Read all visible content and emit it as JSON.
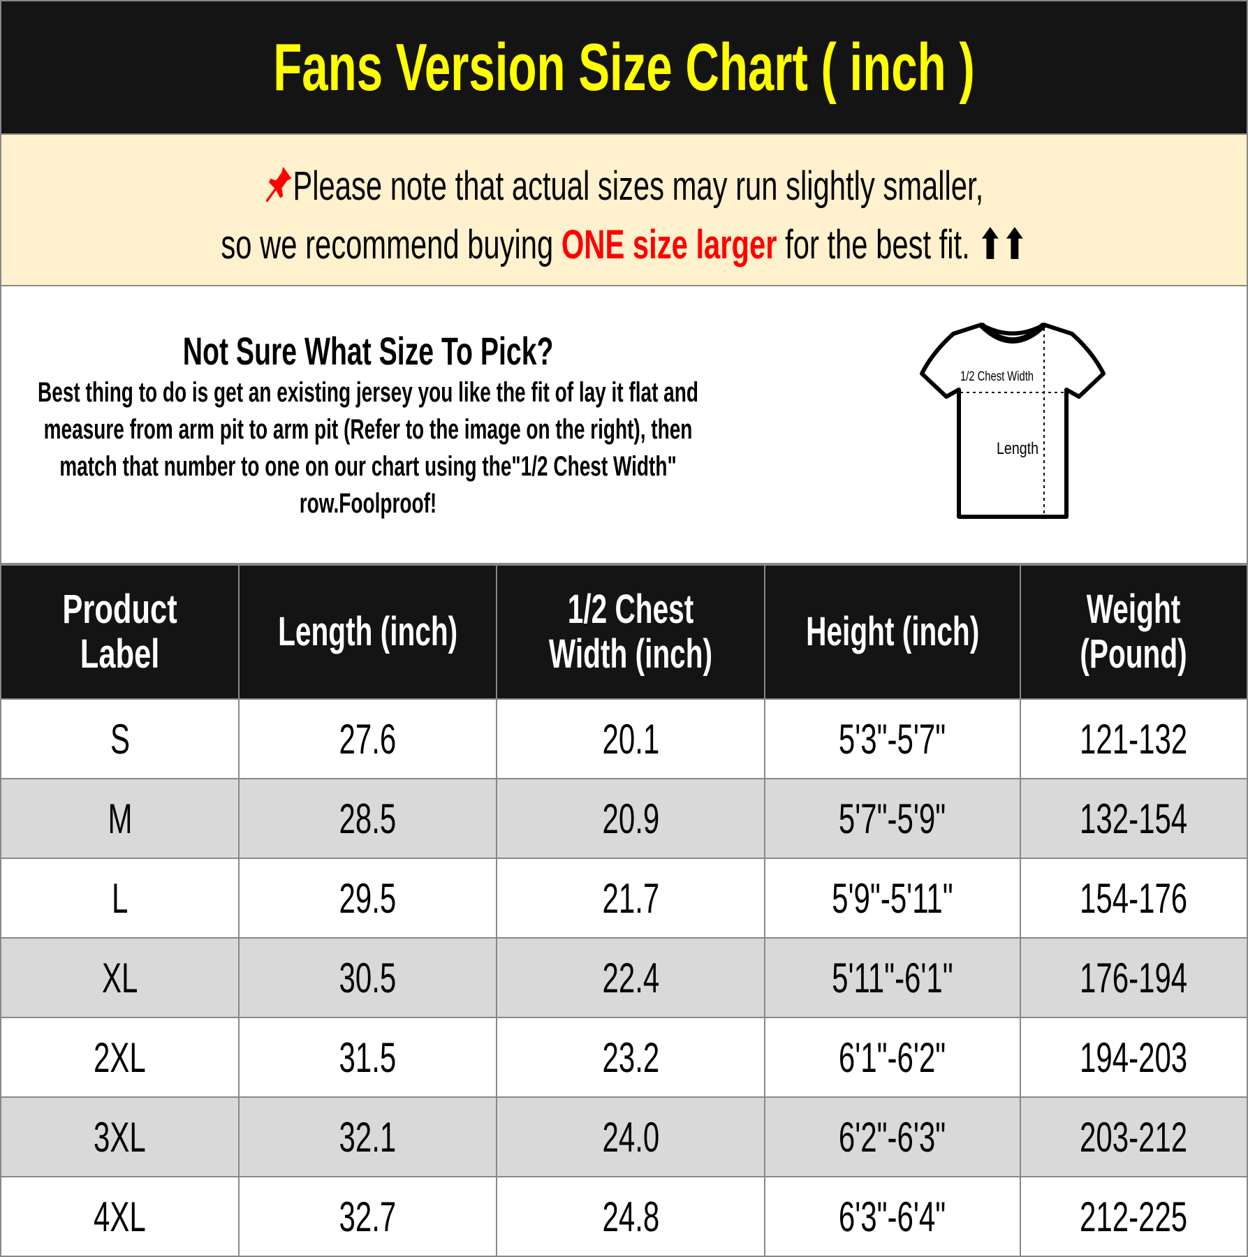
{
  "title": "Fans Version Size Chart ( inch )",
  "note": {
    "line1": "Please note that actual sizes may run slightly smaller,",
    "line2_before": "so we recommend buying ",
    "line2_highlight": "ONE size larger",
    "line2_after": " for the best fit.",
    "arrows": "⬆⬆",
    "pin_icon": "pushpin",
    "highlight_color": "#ff0000"
  },
  "help": {
    "heading": "Not Sure What Size To Pick?",
    "body": "Best thing to do is get an existing jersey you like the fit of lay it flat and measure from arm pit to arm pit (Refer to the image on the right), then match that number to one on our chart using the\"1/2 Chest Width\" row.Foolproof!"
  },
  "diagram": {
    "chest_label": "1/2 Chest Width",
    "length_label": "Length"
  },
  "table": {
    "headers": [
      "Product Label",
      "Length (inch)",
      "1/2 Chest Width (inch)",
      "Height (inch)",
      "Weight (Pound)"
    ],
    "rows": [
      [
        "S",
        "27.6",
        "20.1",
        "5'3\"-5'7\"",
        "121-132"
      ],
      [
        "M",
        "28.5",
        "20.9",
        "5'7\"-5'9\"",
        "132-154"
      ],
      [
        "L",
        "29.5",
        "21.7",
        "5'9\"-5'11\"",
        "154-176"
      ],
      [
        "XL",
        "30.5",
        "22.4",
        "5'11\"-6'1\"",
        "176-194"
      ],
      [
        "2XL",
        "31.5",
        "23.2",
        "6'1\"-6'2\"",
        "194-203"
      ],
      [
        "3XL",
        "32.1",
        "24.0",
        "6'2\"-6'3\"",
        "203-212"
      ],
      [
        "4XL",
        "32.7",
        "24.8",
        "6'3\"-6'4\"",
        "212-225"
      ]
    ]
  },
  "colors": {
    "title_text": "#ffff00",
    "header_bg": "#141414",
    "note_bg": "#fff1cd",
    "alt_row": "#d9d9d9"
  }
}
